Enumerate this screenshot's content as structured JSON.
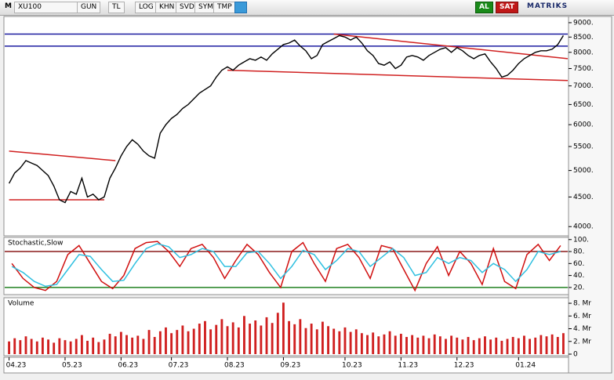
{
  "toolbar": {
    "items": [
      "M",
      "XU100",
      "GUN",
      "TL",
      "LOG",
      "KHN",
      "SVD",
      "SYM",
      "TMP"
    ],
    "buy": "AL",
    "sell": "SAT",
    "brand": "MATRIKS"
  },
  "chart_data": [
    {
      "type": "line",
      "log_scale": true,
      "color": "#000000",
      "categories": [
        "04.23",
        null,
        null,
        null,
        null,
        null,
        null,
        null,
        null,
        null,
        "05.23",
        null,
        null,
        null,
        null,
        null,
        null,
        null,
        null,
        null,
        "06.23",
        null,
        null,
        null,
        null,
        null,
        null,
        null,
        null,
        "07.23",
        null,
        null,
        null,
        null,
        null,
        null,
        null,
        null,
        null,
        "08.23",
        null,
        null,
        null,
        null,
        null,
        null,
        null,
        null,
        null,
        "09.23",
        null,
        null,
        null,
        null,
        null,
        null,
        null,
        null,
        null,
        null,
        "10.23",
        null,
        null,
        null,
        null,
        null,
        null,
        null,
        null,
        null,
        "11.23",
        null,
        null,
        null,
        null,
        null,
        null,
        null,
        null,
        null,
        "12.23",
        null,
        null,
        null,
        null,
        null,
        null,
        null,
        null,
        null,
        null,
        "01.24",
        null,
        null,
        null,
        null,
        null,
        null,
        null,
        null
      ],
      "values": [
        4750,
        4950,
        5050,
        5200,
        5150,
        5100,
        5000,
        4900,
        4700,
        4450,
        4400,
        4600,
        4550,
        4850,
        4500,
        4550,
        4450,
        4500,
        4850,
        5050,
        5300,
        5500,
        5650,
        5550,
        5400,
        5300,
        5250,
        5800,
        6000,
        6150,
        6250,
        6400,
        6500,
        6650,
        6800,
        6900,
        7000,
        7250,
        7450,
        7550,
        7450,
        7600,
        7700,
        7800,
        7750,
        7850,
        7750,
        7950,
        8100,
        8250,
        8300,
        8400,
        8200,
        8050,
        7800,
        7900,
        8250,
        8350,
        8450,
        8550,
        8500,
        8400,
        8500,
        8300,
        8050,
        7900,
        7650,
        7600,
        7700,
        7500,
        7600,
        7850,
        7900,
        7850,
        7750,
        7900,
        8000,
        8100,
        8150,
        8000,
        8150,
        8050,
        7900,
        7800,
        7900,
        7950,
        7700,
        7500,
        7250,
        7300,
        7450,
        7650,
        7800,
        7900,
        8000,
        8050,
        8050,
        8100,
        8250,
        8550
      ],
      "ylim": [
        3880,
        9140
      ],
      "yticks": [
        {
          "value": 4000,
          "label": "4000."
        },
        {
          "value": 4500,
          "label": "4500."
        },
        {
          "value": 5000,
          "label": "5000."
        },
        {
          "value": 5500,
          "label": "5500."
        },
        {
          "value": 6000,
          "label": "6000."
        },
        {
          "value": 6500,
          "label": "6500."
        },
        {
          "value": 7000,
          "label": "7000."
        },
        {
          "value": 7500,
          "label": "7500."
        },
        {
          "value": 8000,
          "label": "8000."
        },
        {
          "value": 8500,
          "label": "8500."
        },
        {
          "value": 9000,
          "label": "9000."
        }
      ],
      "hlines": [
        {
          "value": 8600,
          "color": "#1c1ca0"
        },
        {
          "value": 8200,
          "color": "#1c1ca0"
        }
      ],
      "trendlines": [
        {
          "color": "#d02020",
          "from": [
            0,
            5400
          ],
          "to": [
            19,
            5200
          ]
        },
        {
          "color": "#d02020",
          "from": [
            0,
            4450
          ],
          "to": [
            17,
            4450
          ]
        },
        {
          "color": "#d02020",
          "from": [
            39,
            7450
          ],
          "to": [
            100,
            7150
          ]
        },
        {
          "color": "#d02020",
          "from": [
            58,
            8600
          ],
          "to": [
            100,
            7800
          ]
        }
      ]
    },
    {
      "type": "line",
      "title": "Stochastic,Slow",
      "series": [
        {
          "color": "#d01010",
          "values": [
            60,
            35,
            20,
            15,
            30,
            75,
            90,
            60,
            30,
            18,
            40,
            85,
            95,
            97,
            80,
            55,
            85,
            92,
            70,
            35,
            65,
            92,
            75,
            45,
            20,
            80,
            95,
            60,
            30,
            85,
            92,
            70,
            35,
            90,
            85,
            50,
            15,
            60,
            88,
            40,
            80,
            60,
            25,
            85,
            30,
            18,
            75,
            92,
            65,
            90
          ]
        },
        {
          "color": "#30c0e0",
          "values": [
            55,
            45,
            30,
            22,
            25,
            50,
            75,
            72,
            50,
            30,
            32,
            60,
            85,
            93,
            88,
            70,
            75,
            85,
            80,
            55,
            55,
            78,
            80,
            60,
            35,
            55,
            82,
            75,
            50,
            65,
            85,
            80,
            55,
            70,
            85,
            70,
            40,
            45,
            70,
            60,
            70,
            65,
            45,
            60,
            50,
            30,
            50,
            80,
            75,
            80
          ]
        }
      ],
      "ylim": [
        12,
        101
      ],
      "yticks": [
        {
          "value": 20,
          "label": "20."
        },
        {
          "value": 40,
          "label": "40."
        },
        {
          "value": 60,
          "label": "60."
        },
        {
          "value": 80,
          "label": "80."
        },
        {
          "value": 100,
          "label": "100."
        }
      ],
      "hlines": [
        {
          "value": 80,
          "color": "#8b1a1a"
        },
        {
          "value": 20,
          "color": "#208020"
        }
      ]
    },
    {
      "type": "bar",
      "title": "Volume",
      "color": "#d02020",
      "values": [
        2,
        2.5,
        2.2,
        2.8,
        2.4,
        2,
        2.6,
        2.3,
        1.8,
        2.5,
        2.2,
        2.0,
        2.4,
        3.0,
        2.1,
        2.6,
        1.9,
        2.3,
        3.2,
        2.8,
        3.5,
        3.0,
        2.6,
        2.9,
        2.4,
        3.8,
        2.7,
        3.6,
        4.2,
        3.3,
        3.8,
        4.5,
        3.6,
        4.0,
        4.8,
        5.2,
        3.9,
        4.6,
        5.5,
        4.4,
        5.0,
        4.2,
        6.0,
        4.8,
        5.3,
        4.5,
        5.8,
        4.9,
        6.5,
        8.1,
        5.2,
        4.7,
        5.5,
        4.1,
        4.8,
        3.9,
        5.1,
        4.4,
        4.0,
        3.6,
        4.2,
        3.5,
        3.9,
        3.3,
        3.0,
        3.4,
        2.8,
        3.1,
        3.6,
        2.9,
        3.2,
        2.7,
        3.0,
        2.6,
        2.9,
        2.5,
        3.1,
        2.8,
        2.4,
        2.9,
        2.6,
        2.3,
        2.7,
        2.2,
        2.5,
        2.8,
        2.3,
        2.6,
        2.1,
        2.4,
        2.7,
        2.5,
        2.9,
        2.4,
        2.6,
        3.0,
        2.8,
        3.1,
        2.7,
        3.3
      ],
      "ylim": [
        0,
        8.5
      ],
      "yticks": [
        0,
        {
          "value": 2,
          "label": "2. Mr"
        },
        {
          "value": 4,
          "label": "4. Mr"
        },
        {
          "value": 6,
          "label": "6. Mr"
        },
        {
          "value": 8,
          "label": "8. Mr"
        }
      ]
    }
  ]
}
